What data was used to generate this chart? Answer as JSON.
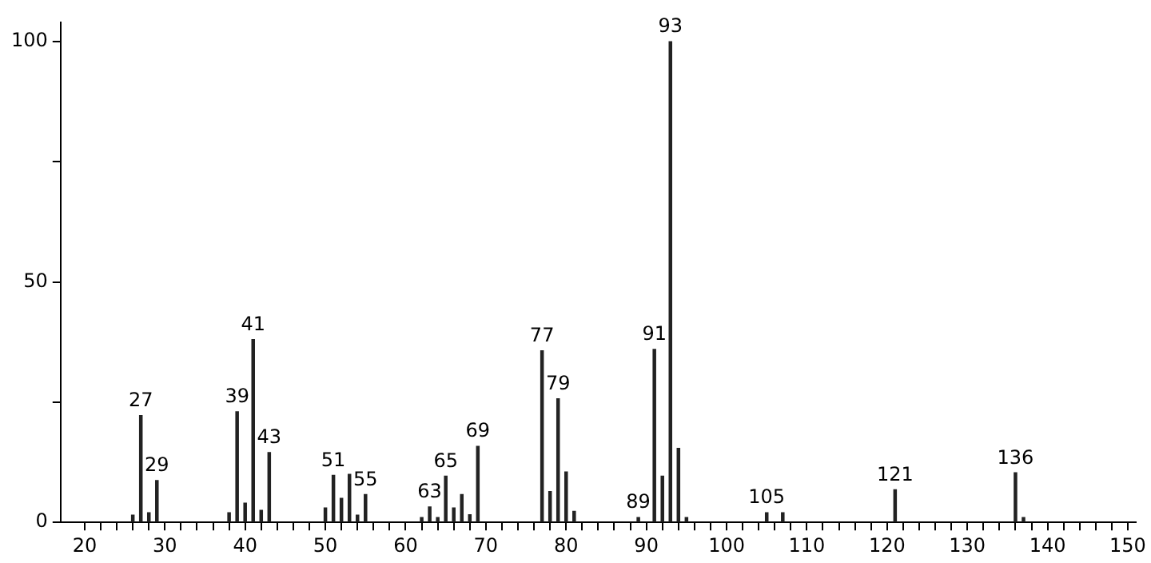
{
  "chart_data": {
    "type": "bar",
    "x": [
      26,
      27,
      28,
      29,
      38,
      39,
      40,
      41,
      42,
      43,
      50,
      51,
      52,
      53,
      54,
      55,
      62,
      63,
      64,
      65,
      66,
      67,
      68,
      69,
      77,
      78,
      79,
      80,
      81,
      89,
      91,
      92,
      93,
      94,
      95,
      105,
      107,
      121,
      136,
      137
    ],
    "values": [
      1.5,
      22.2,
      2,
      8.7,
      2,
      23,
      4,
      38,
      2.5,
      14.5,
      3,
      9.8,
      5,
      10,
      1.5,
      5.8,
      1,
      3.2,
      1,
      9.6,
      3,
      5.8,
      1.6,
      15.8,
      35.7,
      6.4,
      25.7,
      10.5,
      2.3,
      1,
      36,
      9.6,
      100,
      15.4,
      1,
      2,
      2,
      6.8,
      10.3,
      1
    ],
    "color": "#222222",
    "xlim": [
      17,
      151
    ],
    "xticks": [
      20,
      {
        "value": 22,
        "label": null
      },
      {
        "value": 24,
        "label": null
      },
      {
        "value": 26,
        "label": null
      },
      {
        "value": 28,
        "label": null
      },
      30,
      {
        "value": 32,
        "label": null
      },
      {
        "value": 34,
        "label": null
      },
      {
        "value": 36,
        "label": null
      },
      {
        "value": 38,
        "label": null
      },
      40,
      {
        "value": 42,
        "label": null
      },
      {
        "value": 44,
        "label": null
      },
      {
        "value": 46,
        "label": null
      },
      {
        "value": 48,
        "label": null
      },
      50,
      {
        "value": 52,
        "label": null
      },
      {
        "value": 54,
        "label": null
      },
      {
        "value": 56,
        "label": null
      },
      {
        "value": 58,
        "label": null
      },
      60,
      {
        "value": 62,
        "label": null
      },
      {
        "value": 64,
        "label": null
      },
      {
        "value": 66,
        "label": null
      },
      {
        "value": 68,
        "label": null
      },
      70,
      {
        "value": 72,
        "label": null
      },
      {
        "value": 74,
        "label": null
      },
      {
        "value": 76,
        "label": null
      },
      {
        "value": 78,
        "label": null
      },
      80,
      {
        "value": 82,
        "label": null
      },
      {
        "value": 84,
        "label": null
      },
      {
        "value": 86,
        "label": null
      },
      {
        "value": 88,
        "label": null
      },
      90,
      {
        "value": 92,
        "label": null
      },
      {
        "value": 94,
        "label": null
      },
      {
        "value": 96,
        "label": null
      },
      {
        "value": 98,
        "label": null
      },
      100,
      {
        "value": 102,
        "label": null
      },
      {
        "value": 104,
        "label": null
      },
      {
        "value": 106,
        "label": null
      },
      {
        "value": 108,
        "label": null
      },
      110,
      {
        "value": 112,
        "label": null
      },
      {
        "value": 114,
        "label": null
      },
      {
        "value": 116,
        "label": null
      },
      {
        "value": 118,
        "label": null
      },
      120,
      {
        "value": 122,
        "label": null
      },
      {
        "value": 124,
        "label": null
      },
      {
        "value": 126,
        "label": null
      },
      {
        "value": 128,
        "label": null
      },
      130,
      {
        "value": 132,
        "label": null
      },
      {
        "value": 134,
        "label": null
      },
      {
        "value": 136,
        "label": null
      },
      {
        "value": 138,
        "label": null
      },
      140,
      {
        "value": 142,
        "label": null
      },
      {
        "value": 144,
        "label": null
      },
      {
        "value": 146,
        "label": null
      },
      {
        "value": 148,
        "label": null
      },
      150
    ],
    "ylim": [
      0,
      104
    ],
    "yticks": [
      0,
      {
        "value": 25,
        "label": null
      },
      50,
      {
        "value": 75,
        "label": null
      },
      100
    ],
    "grid": false,
    "legend": false,
    "annotations": [
      {
        "text": "27",
        "x": 27,
        "y": 22.2
      },
      {
        "text": "29",
        "x": 29,
        "y": 8.7
      },
      {
        "text": "39",
        "x": 39,
        "y": 23
      },
      {
        "text": "41",
        "x": 41,
        "y": 38
      },
      {
        "text": "43",
        "x": 43,
        "y": 14.5
      },
      {
        "text": "51",
        "x": 51,
        "y": 9.8
      },
      {
        "text": "55",
        "x": 55,
        "y": 5.8
      },
      {
        "text": "63",
        "x": 63,
        "y": 3.2
      },
      {
        "text": "65",
        "x": 65,
        "y": 9.6
      },
      {
        "text": "69",
        "x": 69,
        "y": 15.8
      },
      {
        "text": "77",
        "x": 77,
        "y": 35.7
      },
      {
        "text": "79",
        "x": 79,
        "y": 25.7
      },
      {
        "text": "89",
        "x": 89,
        "y": 1
      },
      {
        "text": "91",
        "x": 91,
        "y": 36
      },
      {
        "text": "93",
        "x": 93,
        "y": 100
      },
      {
        "text": "105",
        "x": 105,
        "y": 2
      },
      {
        "text": "121",
        "x": 121,
        "y": 6.8
      },
      {
        "text": "136",
        "x": 136,
        "y": 10.3
      }
    ]
  }
}
